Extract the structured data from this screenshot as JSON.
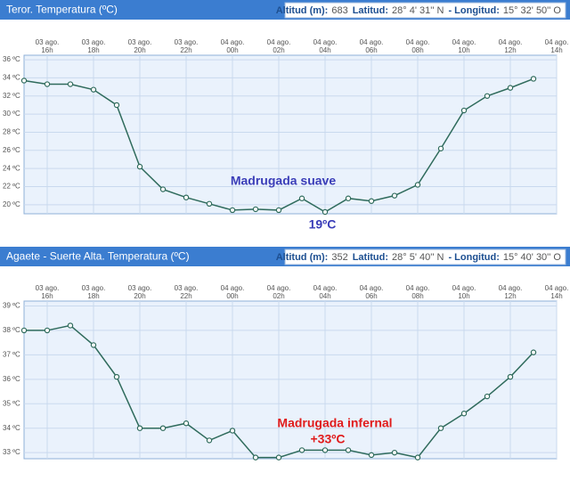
{
  "chart_data": [
    {
      "type": "line",
      "title": "Teror. Temperatura (ºC)",
      "station": [
        {
          "label": "Altitud (m):",
          "value": "683"
        },
        {
          "label": "Latitud:",
          "value": "28° 4' 31'' N"
        },
        {
          "label": "- Longitud:",
          "value": "15° 32' 50'' O"
        }
      ],
      "categories": [
        null,
        {
          "date": "03 ago.",
          "hour": "16h"
        },
        null,
        {
          "date": "03 ago.",
          "hour": "18h"
        },
        null,
        {
          "date": "03 ago.",
          "hour": "20h"
        },
        null,
        {
          "date": "03 ago.",
          "hour": "22h"
        },
        null,
        {
          "date": "04 ago.",
          "hour": "00h"
        },
        null,
        {
          "date": "04 ago.",
          "hour": "02h"
        },
        null,
        {
          "date": "04 ago.",
          "hour": "04h"
        },
        null,
        {
          "date": "04 ago.",
          "hour": "06h"
        },
        null,
        {
          "date": "04 ago.",
          "hour": "08h"
        },
        null,
        {
          "date": "04 ago.",
          "hour": "10h"
        },
        null,
        {
          "date": "04 ago.",
          "hour": "12h"
        },
        null,
        {
          "date": "04 ago.",
          "hour": "14h"
        }
      ],
      "values": [
        33.7,
        33.3,
        33.3,
        32.7,
        31.0,
        24.2,
        21.7,
        20.8,
        20.1,
        19.4,
        19.5,
        19.4,
        20.7,
        19.2,
        20.7,
        20.4,
        21.0,
        22.2,
        26.2,
        30.4,
        32.0,
        32.9,
        33.9,
        null
      ],
      "color": "#2f6b5c",
      "ylim": [
        19,
        36.5
      ],
      "yticks": [
        {
          "value": 20,
          "label": "20 ºC"
        },
        {
          "value": 22,
          "label": "22 ºC"
        },
        {
          "value": 24,
          "label": "24 ºC"
        },
        {
          "value": 26,
          "label": "26 ºC"
        },
        {
          "value": 28,
          "label": "28 ºC"
        },
        {
          "value": 30,
          "label": "30 ºC"
        },
        {
          "value": 32,
          "label": "32 ºC"
        },
        {
          "value": 34,
          "label": "34 ºC"
        },
        {
          "value": 36,
          "label": "36 ºC"
        }
      ],
      "grid": true,
      "annotations": [
        {
          "text": "Madrugada suave",
          "color": "#3a3db8"
        },
        {
          "text": "19ºC",
          "color": "#3a3db8"
        }
      ]
    },
    {
      "type": "line",
      "title": "Agaete - Suerte Alta. Temperatura (ºC)",
      "station": [
        {
          "label": "Altitud (m):",
          "value": "352"
        },
        {
          "label": "Latitud:",
          "value": "28° 5' 40'' N"
        },
        {
          "label": "- Longitud:",
          "value": "15° 40' 30'' O"
        }
      ],
      "categories": [
        null,
        {
          "date": "03 ago.",
          "hour": "16h"
        },
        null,
        {
          "date": "03 ago.",
          "hour": "18h"
        },
        null,
        {
          "date": "03 ago.",
          "hour": "20h"
        },
        null,
        {
          "date": "03 ago.",
          "hour": "22h"
        },
        null,
        {
          "date": "04 ago.",
          "hour": "00h"
        },
        null,
        {
          "date": "04 ago.",
          "hour": "02h"
        },
        null,
        {
          "date": "04 ago.",
          "hour": "04h"
        },
        null,
        {
          "date": "04 ago.",
          "hour": "06h"
        },
        null,
        {
          "date": "04 ago.",
          "hour": "08h"
        },
        null,
        {
          "date": "04 ago.",
          "hour": "10h"
        },
        null,
        {
          "date": "04 ago.",
          "hour": "12h"
        },
        null,
        {
          "date": "04 ago.",
          "hour": "14h"
        }
      ],
      "values": [
        38.0,
        38.0,
        38.2,
        37.4,
        36.1,
        34.0,
        34.0,
        34.2,
        33.5,
        33.9,
        32.8,
        32.8,
        33.1,
        33.1,
        33.1,
        32.9,
        33.0,
        32.8,
        34.0,
        34.6,
        35.3,
        36.1,
        37.1,
        null
      ],
      "color": "#2f6b5c",
      "ylim": [
        32.75,
        39.2
      ],
      "yticks": [
        {
          "value": 33,
          "label": "33 ºC"
        },
        {
          "value": 34,
          "label": "34 ºC"
        },
        {
          "value": 35,
          "label": "35 ºC"
        },
        {
          "value": 36,
          "label": "36 ºC"
        },
        {
          "value": 37,
          "label": "37 ºC"
        },
        {
          "value": 38,
          "label": "38 ºC"
        },
        {
          "value": 39,
          "label": "39 ºC"
        }
      ],
      "grid": true,
      "annotations": [
        {
          "text": "Madrugada infernal",
          "color": "#e01b1b"
        },
        {
          "text": "+33ºC",
          "color": "#e01b1b"
        }
      ]
    }
  ]
}
